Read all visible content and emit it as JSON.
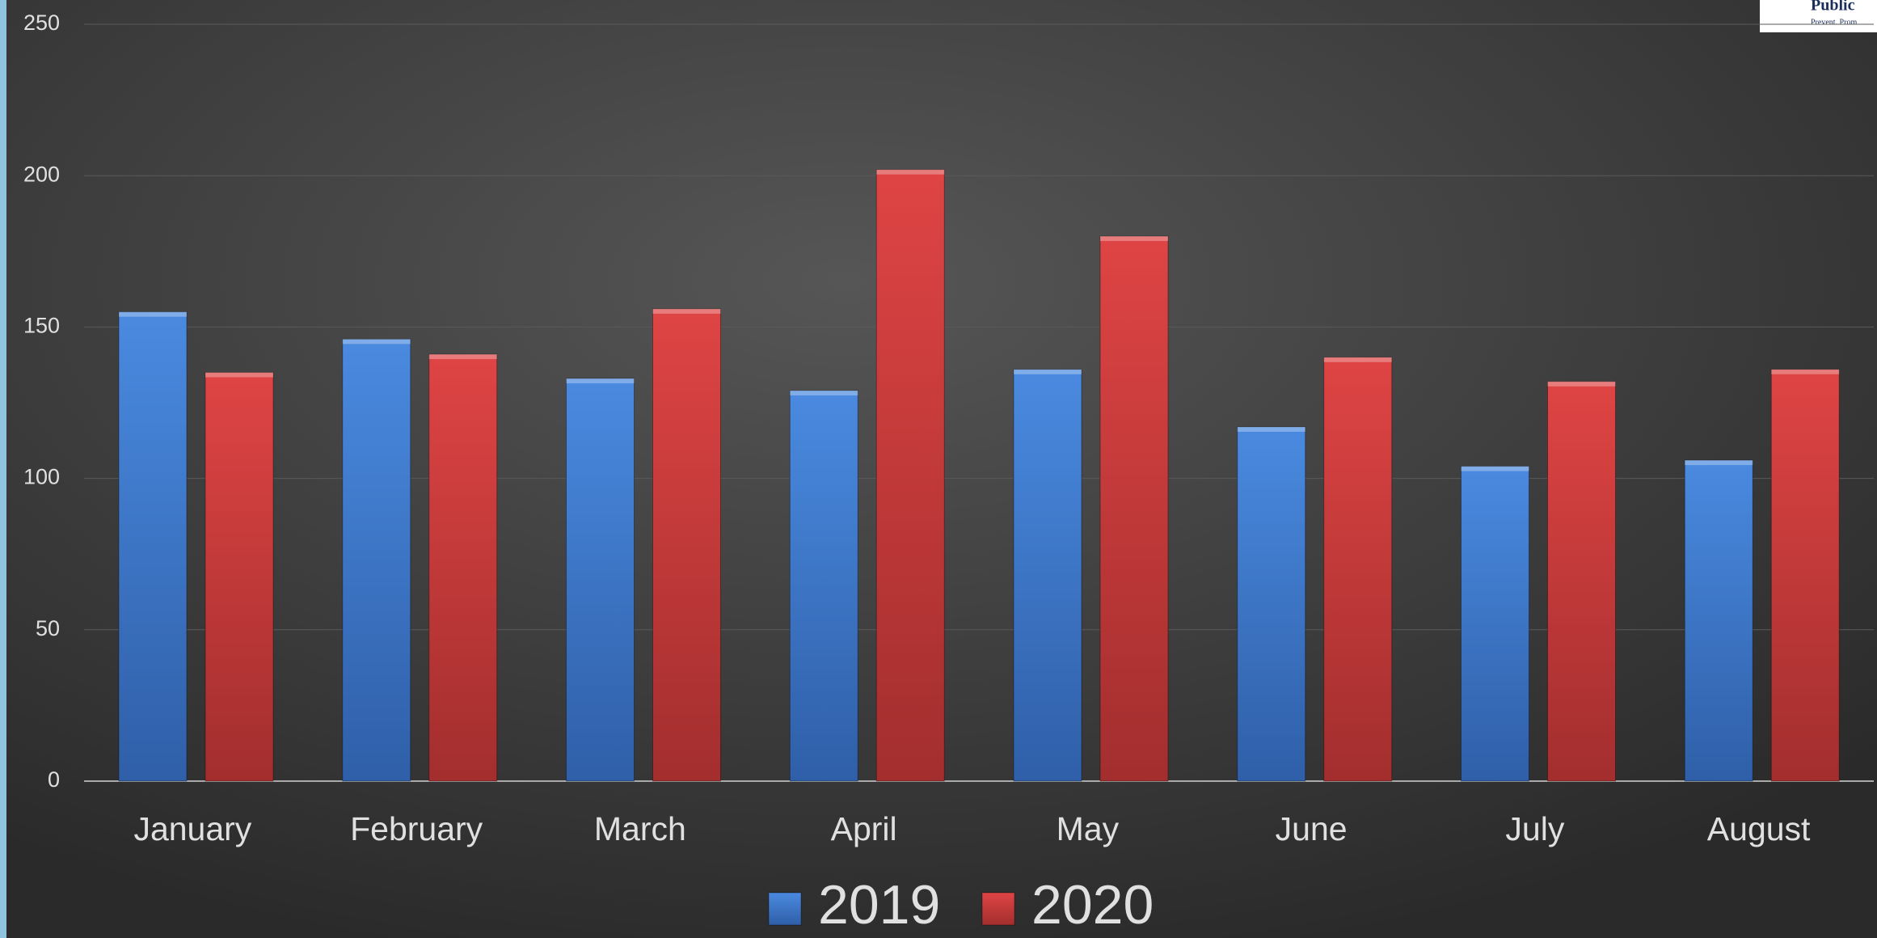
{
  "chart_data": {
    "type": "bar",
    "categories": [
      "January",
      "February",
      "March",
      "April",
      "May",
      "June",
      "July",
      "August"
    ],
    "series": [
      {
        "name": "2019",
        "color": "#3f7fd6",
        "values": [
          155,
          146,
          133,
          129,
          136,
          117,
          104,
          106
        ]
      },
      {
        "name": "2020",
        "color": "#d63f3f",
        "values": [
          135,
          141,
          156,
          202,
          180,
          140,
          132,
          136
        ]
      }
    ],
    "ylim": [
      0,
      250
    ],
    "yticks": [
      0,
      50,
      100,
      150,
      200,
      250
    ],
    "grid": true,
    "legend": "bottom"
  },
  "logo": {
    "name": "Public",
    "tagline": "Prevent. Prom"
  }
}
